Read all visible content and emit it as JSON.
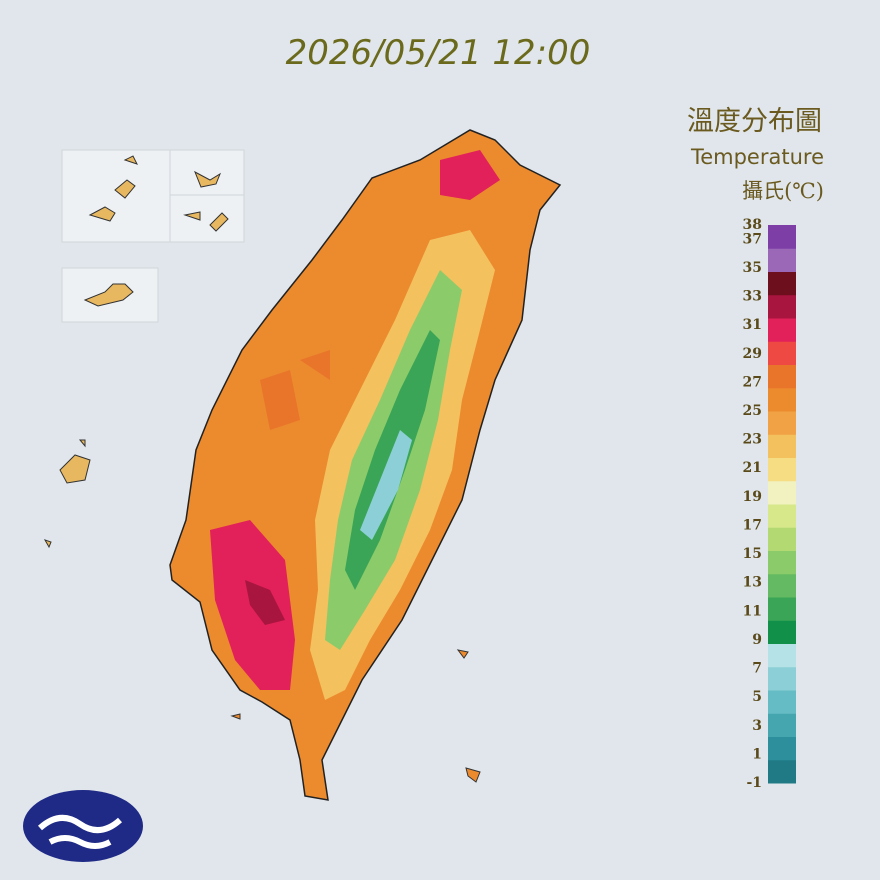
{
  "header": {
    "timestamp": "2026/05/21 12:00",
    "title": "溫度分布圖",
    "subtitle": "Temperature",
    "unit": "攝氏(℃)"
  },
  "legend": {
    "labels": [
      38,
      37,
      35,
      33,
      31,
      29,
      27,
      25,
      23,
      21,
      19,
      17,
      15,
      13,
      11,
      9,
      7,
      5,
      3,
      1,
      -1
    ],
    "range": [
      -1,
      38
    ],
    "colors": [
      "#1f7a86",
      "#2e8f9c",
      "#46a6b0",
      "#66bcc4",
      "#8ccfd6",
      "#b4e2e6",
      "#11904a",
      "#3aa556",
      "#64ba62",
      "#8ccb6a",
      "#b3da72",
      "#d6e88a",
      "#f1f2c0",
      "#f6dc82",
      "#f3c15e",
      "#f0a245",
      "#ec8a2e",
      "#e9752a",
      "#ee4a43",
      "#e2205a",
      "#a8153e",
      "#6e0f1e",
      "#9b68b8",
      "#7d3fa6"
    ]
  }
}
